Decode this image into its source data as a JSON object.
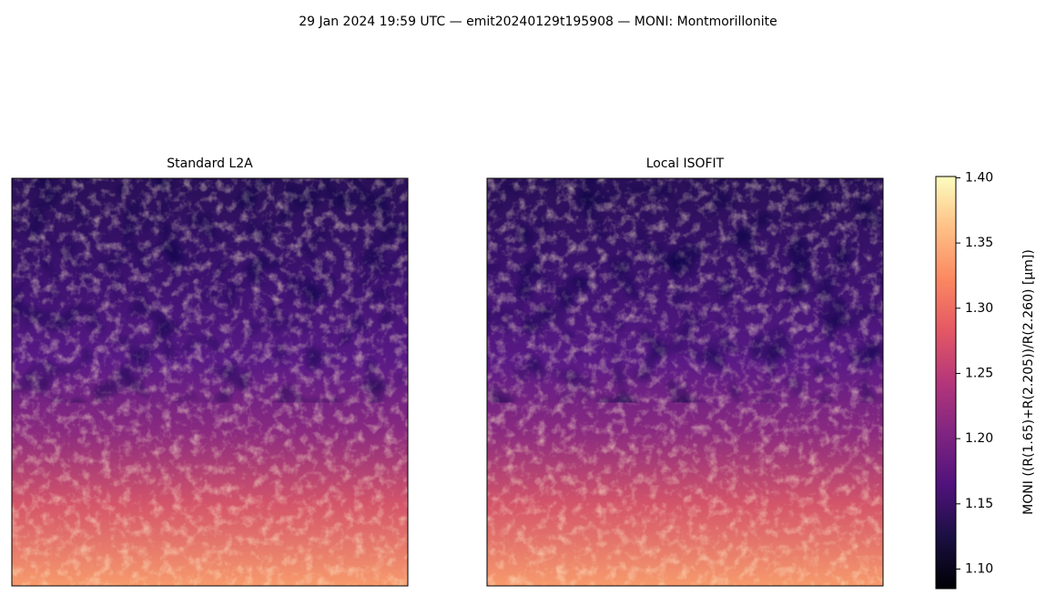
{
  "chart_data": {
    "type": "image",
    "title": "29 Jan 2024 19:59 UTC — emit20240129t195908 — MONI: Montmorillonite",
    "panels": [
      {
        "title": "Standard L2A"
      },
      {
        "title": "Local ISOFIT"
      }
    ],
    "colorbar": {
      "label": "MONI  ((R(1.65)+R(2.205))/R(2.260)  [µm])",
      "lim": [
        1.085,
        1.401
      ],
      "ticks": [
        {
          "value": 1.1,
          "label": "1.10"
        },
        1.15,
        {
          "value": 1.2,
          "label": "1.20"
        },
        1.25,
        {
          "value": 1.3,
          "label": "1.30"
        },
        1.35,
        {
          "value": 1.4,
          "label": "1.40"
        }
      ]
    }
  }
}
